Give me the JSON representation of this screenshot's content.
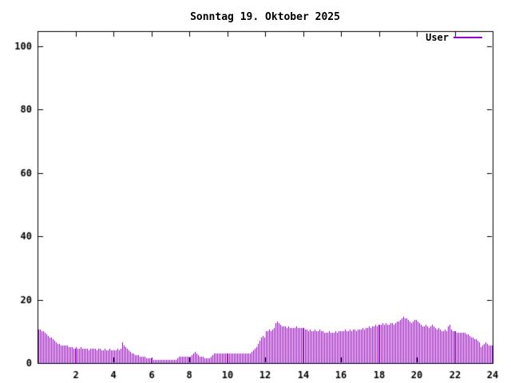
{
  "title": "Sonntag 19. Oktober 2025",
  "legend": {
    "label": "User",
    "position": "top-right"
  },
  "colors": {
    "background": "#ffffff",
    "axis": "#000000",
    "text": "#000000",
    "series": "#9400d3"
  },
  "chart_data": {
    "type": "bar",
    "style": "impulses",
    "title": "Sonntag 19. Oktober 2025",
    "xlabel": "",
    "ylabel": "",
    "xlim": [
      0,
      24
    ],
    "ylim": [
      0,
      105
    ],
    "xticks": [
      2,
      4,
      6,
      8,
      10,
      12,
      14,
      16,
      18,
      20,
      22,
      24
    ],
    "yticks": [
      0,
      20,
      40,
      60,
      80,
      100
    ],
    "grid": false,
    "legend_position": "top-right",
    "x_unit": "hour_of_day",
    "interval_minutes": 5,
    "series": [
      {
        "name": "User",
        "color": "#9400d3",
        "values": [
          10.5,
          10.5,
          10,
          10,
          9.5,
          9,
          8.5,
          8,
          8,
          7.5,
          7,
          6.5,
          6,
          6,
          5.5,
          5.5,
          5.5,
          5.5,
          5.5,
          5,
          5,
          5,
          4.5,
          4.5,
          5,
          4.5,
          4.5,
          5,
          4.5,
          4.5,
          4.5,
          4.5,
          4,
          4.5,
          4.5,
          4.5,
          4.5,
          4,
          4.5,
          4.5,
          4,
          4,
          4.5,
          4,
          4,
          4.5,
          4,
          4,
          4,
          4,
          4.5,
          4,
          4.5,
          6.5,
          5.5,
          5,
          4.5,
          4,
          3.5,
          3,
          3,
          2.5,
          2.5,
          2.5,
          2,
          2,
          2,
          2,
          1.5,
          1.5,
          1.5,
          1.5,
          1.5,
          1,
          1,
          1,
          1,
          1,
          1,
          1,
          1,
          1,
          1,
          1,
          1,
          1,
          1,
          1,
          1.5,
          2,
          2,
          2,
          2,
          2,
          2,
          2,
          2,
          2.5,
          3,
          3.5,
          3,
          2.5,
          2,
          2,
          2,
          1.5,
          1.5,
          1.5,
          1.5,
          2,
          2.5,
          3,
          3,
          3,
          3,
          3,
          3,
          3,
          3,
          3,
          3,
          3,
          3,
          3,
          3,
          3,
          3,
          3,
          3,
          3,
          3,
          3,
          3,
          3,
          3,
          3.5,
          4,
          4.5,
          5,
          6,
          7,
          8,
          8.5,
          8,
          10,
          10,
          10.5,
          10,
          10.5,
          11,
          12.5,
          13,
          12.5,
          12,
          11.5,
          11.5,
          11.5,
          11,
          11.5,
          11,
          11,
          11,
          11,
          11.5,
          11,
          11,
          11,
          11,
          11,
          10.5,
          10.5,
          10,
          10.5,
          10,
          10,
          10.5,
          10,
          10,
          10.5,
          10,
          10,
          9.5,
          9.5,
          9.5,
          10,
          9.5,
          9.5,
          9.5,
          10,
          9.5,
          10,
          10,
          10,
          10,
          10.5,
          10,
          10,
          10.5,
          10,
          10.5,
          10.5,
          10,
          10.5,
          10.5,
          10.5,
          11,
          10.5,
          11,
          11,
          11.5,
          11,
          11.5,
          11.5,
          12,
          11.5,
          12,
          12,
          12,
          12.5,
          12,
          12.5,
          12,
          12,
          12.5,
          12.5,
          12,
          12.5,
          13,
          13,
          13.5,
          14,
          14.5,
          14,
          14,
          13.5,
          13,
          12.5,
          13,
          13.5,
          13.5,
          13,
          12.5,
          12,
          11.5,
          11.5,
          12,
          11.5,
          11,
          11.5,
          12,
          11.5,
          11,
          10.5,
          11,
          10.5,
          10,
          10,
          10.5,
          10,
          11.5,
          12,
          10.5,
          10,
          10,
          10,
          9.5,
          9.5,
          9.5,
          9.5,
          9.5,
          9.5,
          9,
          9,
          8.5,
          8,
          8,
          7.5,
          7.5,
          7,
          6.5,
          5,
          5.5,
          6,
          6.5,
          6,
          5.5,
          5.5,
          5.5
        ]
      }
    ]
  }
}
